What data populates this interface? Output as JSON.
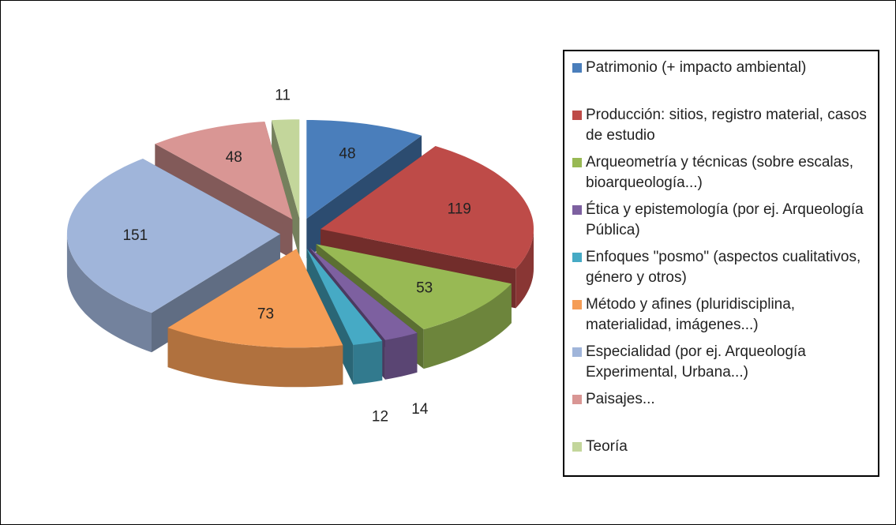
{
  "chart_data": {
    "type": "pie",
    "style": "3d-exploded",
    "categories": [
      "Patrimonio (+ impacto ambiental)",
      "Producción: sitios, registro material, casos de estudio",
      "Arqueometría y técnicas (sobre escalas, bioarqueología...)",
      "Ética y epistemología (por ej. Arqueología Pública)",
      "Enfoques \"posmo\" (aspectos cualitativos, género y otros)",
      "Método y afines (pluridisciplina, materialidad, imágenes...)",
      "Especialidad (por ej. Arqueología Experimental, Urbana...)",
      "Paisajes...",
      "Teoría"
    ],
    "values": [
      48,
      119,
      53,
      14,
      12,
      73,
      151,
      48,
      11
    ],
    "colors": [
      "#4a7ebb",
      "#be4b48",
      "#98b954",
      "#7d60a0",
      "#46aac5",
      "#f59d56",
      "#a0b5da",
      "#d99694",
      "#c3d69b"
    ],
    "legend": "right"
  }
}
